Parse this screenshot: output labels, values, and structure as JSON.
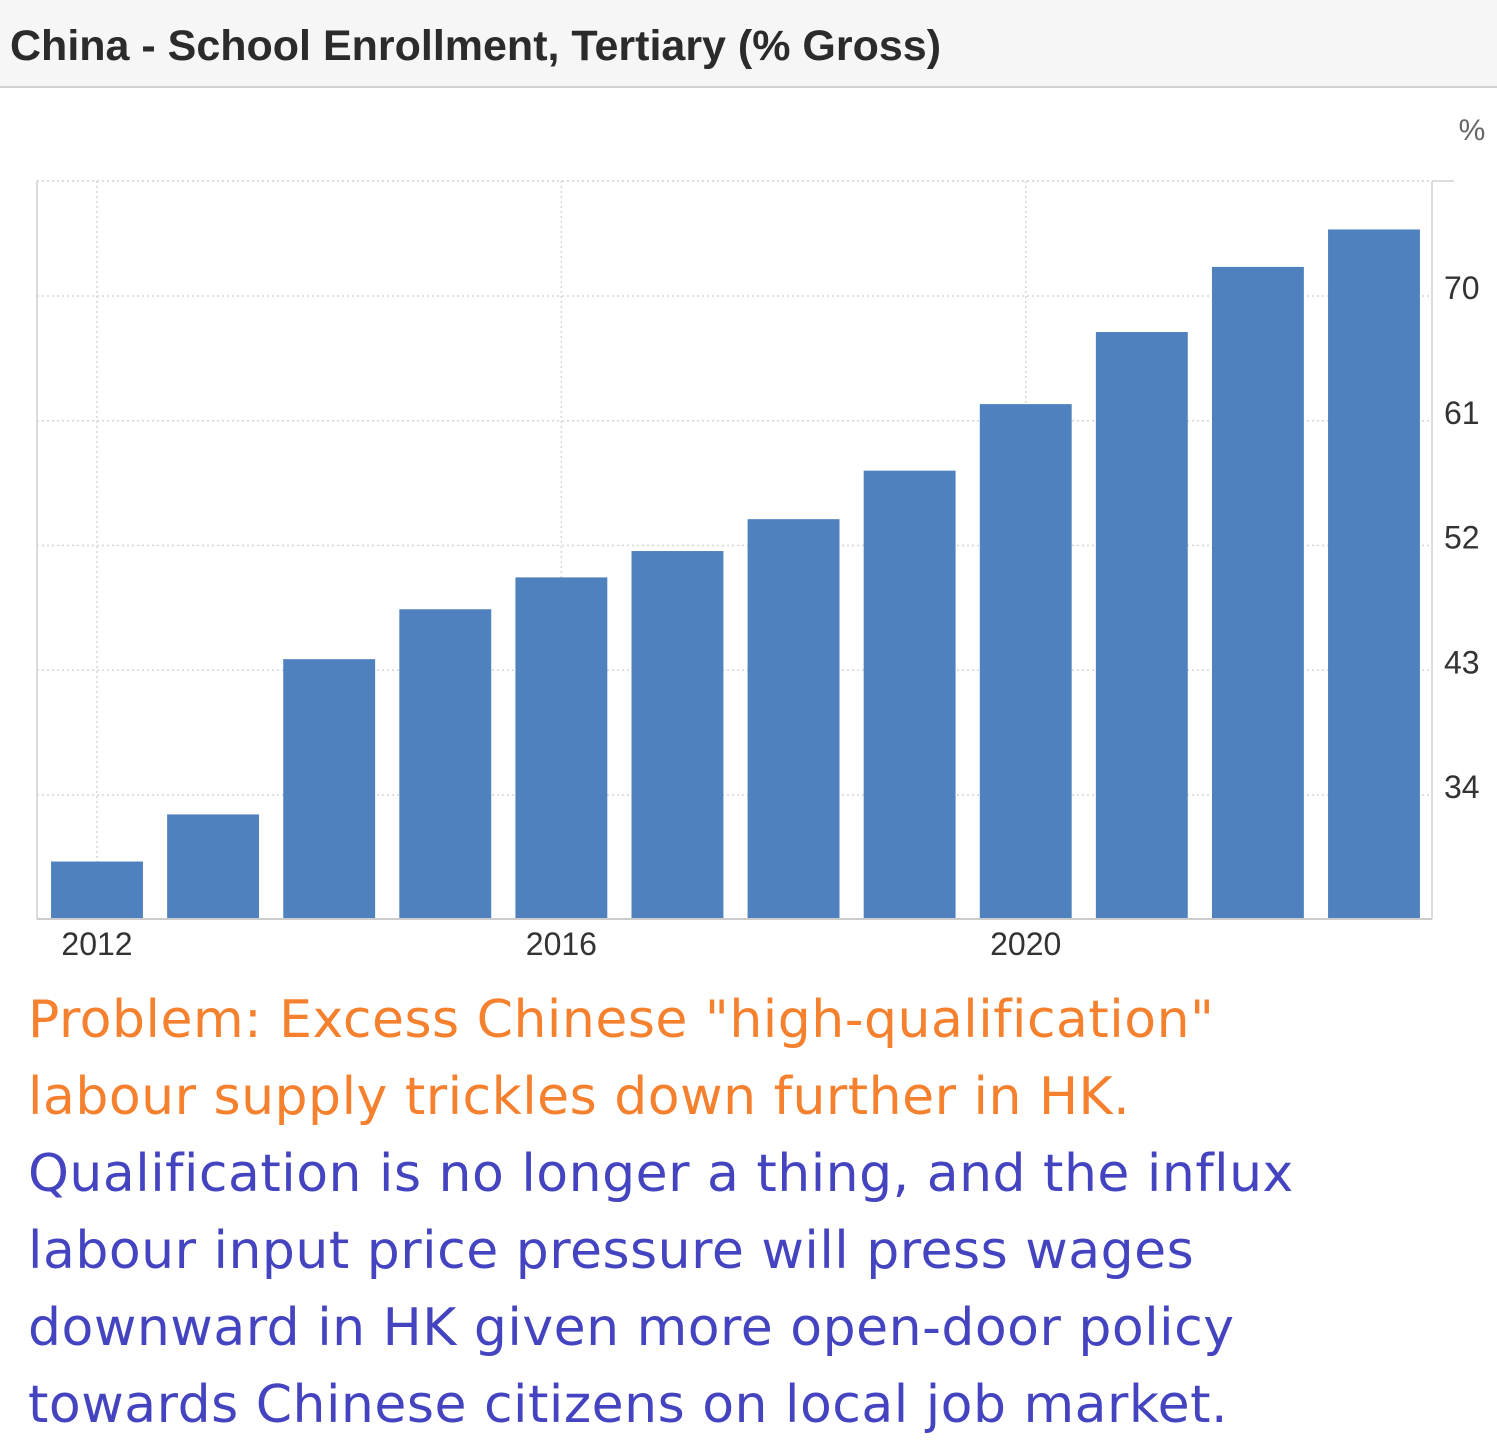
{
  "header": {
    "title": "China - School Enrollment, Tertiary (% Gross)"
  },
  "chart_data": {
    "type": "bar",
    "unit_label": "%",
    "y_axis_position": "right",
    "grid": true,
    "ylim": [
      25,
      77
    ],
    "y_ticks": [
      34,
      43,
      52,
      61,
      70
    ],
    "x_tick_labels": [
      "2012",
      "2016",
      "2020"
    ],
    "categories": [
      "2012",
      "2013",
      "2014",
      "2015",
      "2016",
      "2017",
      "2018",
      "2019",
      "2020",
      "2021",
      "2022",
      "2023"
    ],
    "values": [
      29.2,
      32.6,
      43.8,
      47.4,
      49.7,
      51.6,
      53.9,
      57.4,
      62.2,
      67.4,
      72.1,
      74.8
    ],
    "bar_color": "#4e81bd"
  },
  "caption": {
    "lines_orange": [
      "Problem: Excess Chinese \"high-qualification\"",
      "labour supply trickles down further in HK."
    ],
    "lines_blue": [
      "Qualification is no longer a thing, and the influx",
      "labour input price pressure will press wages",
      "downward in HK given more open-door policy",
      "towards Chinese citizens on local job market."
    ],
    "color_orange": "#f5812f",
    "color_blue": "#4444c0"
  }
}
